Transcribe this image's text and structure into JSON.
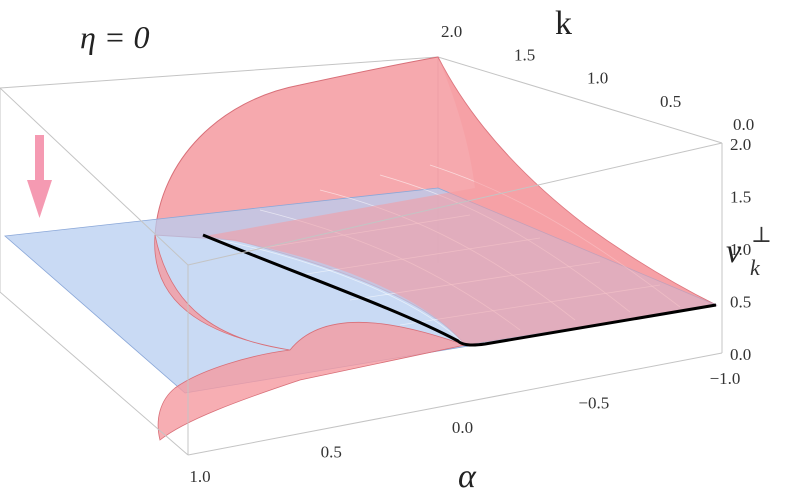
{
  "chart_data": {
    "type": "surface",
    "title": "η = 0",
    "xlabel": "α",
    "ylabel": "k",
    "zlabel": "ν",
    "zlabel_sub": "k",
    "zlabel_sup": "⊥",
    "x_ticks": [
      "1.0",
      "0.5",
      "0.0",
      "−0.5",
      "−1.0"
    ],
    "y_ticks": [
      "0.0",
      "0.5",
      "1.0",
      "1.5",
      "2.0"
    ],
    "z_ticks": [
      "0.0",
      "0.5",
      "1.0",
      "1.5",
      "2.0"
    ],
    "xlim": [
      -1.0,
      1.0
    ],
    "ylim": [
      0.0,
      2.0
    ],
    "zlim": [
      0.0,
      2.0
    ],
    "series": [],
    "colors": {
      "surface_red": "#f59aa0",
      "surface_red_edge": "#d86f78",
      "plane_blue": "#b7cdf0",
      "curve": "#000000",
      "arrow": "#f59ab2"
    },
    "blue_plane_z": 1.0
  }
}
